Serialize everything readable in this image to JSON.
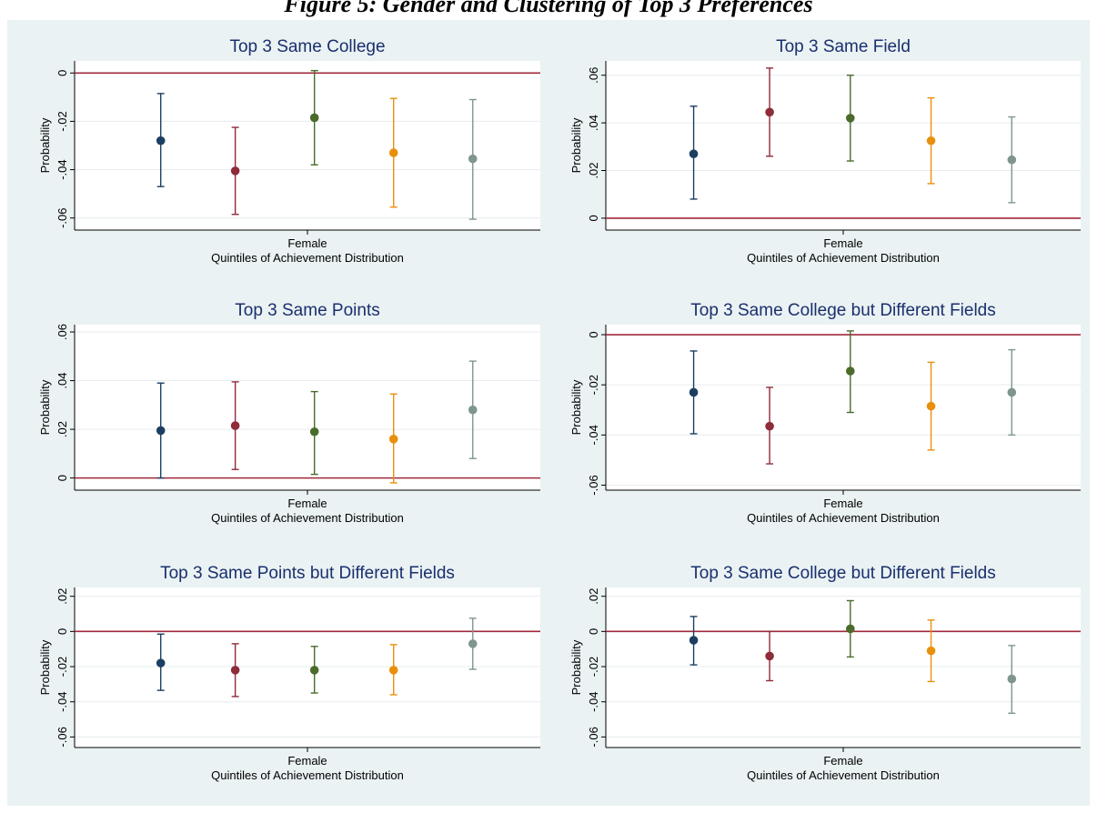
{
  "figure_title": "Figure 5: Gender and Clustering of Top 3 Preferences",
  "colors": {
    "background": "#eaf2f3",
    "plot_bg": "#ffffff",
    "zero_line": "#a0283c",
    "title": "#1a2f6e",
    "quintiles": [
      "#1c3f61",
      "#8e2c3a",
      "#4a6b2a",
      "#e8900c",
      "#7f9590"
    ]
  },
  "chart_data": [
    {
      "type": "scatter",
      "title": "Top 3 Same College",
      "ylabel": "Probability",
      "xlabel": "Quintiles of Achievement Distribution",
      "x_category": "Female",
      "ylim": [
        -0.065,
        0.005
      ],
      "yticks": [
        0,
        -0.02,
        -0.04,
        -0.06
      ],
      "ytick_labels": [
        "0",
        "-.02",
        "-.04",
        "-.06"
      ],
      "reference_line": 0,
      "points": [
        {
          "y": -0.028,
          "lo": -0.047,
          "hi": -0.0085
        },
        {
          "y": -0.0405,
          "lo": -0.0585,
          "hi": -0.0225
        },
        {
          "y": -0.0185,
          "lo": -0.038,
          "hi": 0.001
        },
        {
          "y": -0.033,
          "lo": -0.0555,
          "hi": -0.0105
        },
        {
          "y": -0.0355,
          "lo": -0.0605,
          "hi": -0.011
        }
      ]
    },
    {
      "type": "scatter",
      "title": "Top 3 Same Field",
      "ylabel": "Probability",
      "xlabel": "Quintiles of Achievement Distribution",
      "x_category": "Female",
      "ylim": [
        -0.005,
        0.066
      ],
      "yticks": [
        0,
        0.02,
        0.04,
        0.06
      ],
      "ytick_labels": [
        "0",
        ".02",
        ".04",
        ".06"
      ],
      "reference_line": 0,
      "points": [
        {
          "y": 0.027,
          "lo": 0.008,
          "hi": 0.047
        },
        {
          "y": 0.0445,
          "lo": 0.026,
          "hi": 0.063
        },
        {
          "y": 0.042,
          "lo": 0.024,
          "hi": 0.06
        },
        {
          "y": 0.0325,
          "lo": 0.0145,
          "hi": 0.0505
        },
        {
          "y": 0.0245,
          "lo": 0.0065,
          "hi": 0.0425
        }
      ]
    },
    {
      "type": "scatter",
      "title": "Top 3 Same Points",
      "ylabel": "Probability",
      "xlabel": "Quintiles of Achievement Distribution",
      "x_category": "Female",
      "ylim": [
        -0.005,
        0.063
      ],
      "yticks": [
        0,
        0.02,
        0.04,
        0.06
      ],
      "ytick_labels": [
        "0",
        ".02",
        ".04",
        ".06"
      ],
      "reference_line": 0,
      "points": [
        {
          "y": 0.0195,
          "lo": 0.0,
          "hi": 0.039
        },
        {
          "y": 0.0215,
          "lo": 0.0035,
          "hi": 0.0395
        },
        {
          "y": 0.019,
          "lo": 0.0015,
          "hi": 0.0355
        },
        {
          "y": 0.016,
          "lo": -0.002,
          "hi": 0.0345
        },
        {
          "y": 0.028,
          "lo": 0.008,
          "hi": 0.048
        }
      ]
    },
    {
      "type": "scatter",
      "title": "Top 3 Same College but Different Fields",
      "ylabel": "Probability",
      "xlabel": "Quintiles of Achievement Distribution",
      "x_category": "Female",
      "ylim": [
        -0.062,
        0.004
      ],
      "yticks": [
        0,
        -0.02,
        -0.04,
        -0.06
      ],
      "ytick_labels": [
        "0",
        "-.02",
        "-.04",
        "-.06"
      ],
      "reference_line": 0,
      "points": [
        {
          "y": -0.023,
          "lo": -0.0395,
          "hi": -0.0065
        },
        {
          "y": -0.0365,
          "lo": -0.0515,
          "hi": -0.021
        },
        {
          "y": -0.0145,
          "lo": -0.031,
          "hi": 0.0015
        },
        {
          "y": -0.0285,
          "lo": -0.046,
          "hi": -0.011
        },
        {
          "y": -0.023,
          "lo": -0.04,
          "hi": -0.006
        }
      ]
    },
    {
      "type": "scatter",
      "title": "Top 3 Same Points but Different Fields",
      "ylabel": "Probability",
      "xlabel": "Quintiles of Achievement Distribution",
      "x_category": "Female",
      "ylim": [
        -0.066,
        0.025
      ],
      "yticks": [
        0.02,
        0,
        -0.02,
        -0.04,
        -0.06
      ],
      "ytick_labels": [
        ".02",
        "0",
        "-.02",
        "-.04",
        "-.06"
      ],
      "reference_line": 0,
      "points": [
        {
          "y": -0.018,
          "lo": -0.0335,
          "hi": -0.0015
        },
        {
          "y": -0.022,
          "lo": -0.037,
          "hi": -0.007
        },
        {
          "y": -0.022,
          "lo": -0.035,
          "hi": -0.0085
        },
        {
          "y": -0.022,
          "lo": -0.036,
          "hi": -0.0075
        },
        {
          "y": -0.007,
          "lo": -0.0215,
          "hi": 0.0075
        }
      ]
    },
    {
      "type": "scatter",
      "title": "Top 3 Same College but Different Fields",
      "ylabel": "Probability",
      "xlabel": "Quintiles of Achievement Distribution",
      "x_category": "Female",
      "ylim": [
        -0.066,
        0.025
      ],
      "yticks": [
        0.02,
        0,
        -0.02,
        -0.04,
        -0.06
      ],
      "ytick_labels": [
        ".02",
        "0",
        "-.02",
        "-.04",
        "-.06"
      ],
      "reference_line": 0,
      "points": [
        {
          "y": -0.005,
          "lo": -0.019,
          "hi": 0.0085
        },
        {
          "y": -0.014,
          "lo": -0.028,
          "hi": 0.0
        },
        {
          "y": 0.0015,
          "lo": -0.0145,
          "hi": 0.0175
        },
        {
          "y": -0.011,
          "lo": -0.0285,
          "hi": 0.0065
        },
        {
          "y": -0.027,
          "lo": -0.0465,
          "hi": -0.008
        }
      ]
    }
  ]
}
